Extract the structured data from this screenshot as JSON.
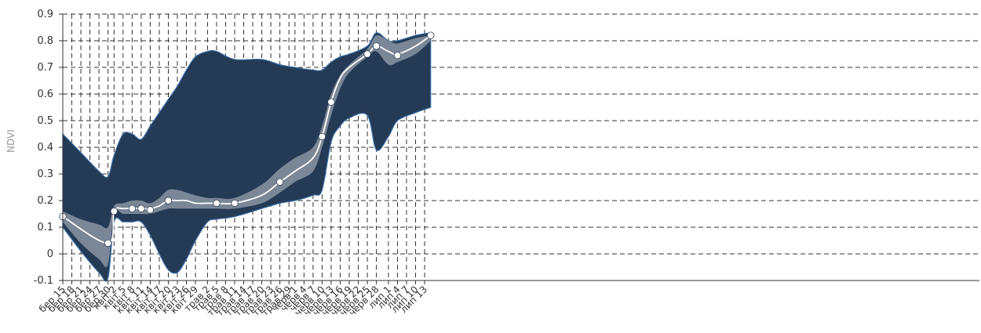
{
  "chart_data": {
    "type": "area",
    "ylabel": "NDVI",
    "ylim": [
      -0.1,
      0.9
    ],
    "yticks": [
      "-0.1",
      "0",
      "0.1",
      "0.2",
      "0.3",
      "0.4",
      "0.5",
      "0.6",
      "0.7",
      "0.8",
      "0.9"
    ],
    "grid": true,
    "x_start_date": "2015-09-15",
    "x_end_date": "2016-07-15",
    "xticks": [
      {
        "label": "бер 15",
        "date": "2015-09-15"
      },
      {
        "label": "бер 18",
        "date": "2015-09-18"
      },
      {
        "label": "бер 21",
        "date": "2015-09-21"
      },
      {
        "label": "бер 24",
        "date": "2015-09-24"
      },
      {
        "label": "бер 27",
        "date": "2015-09-27"
      },
      {
        "label": "бер 30",
        "date": "2015-09-30"
      },
      {
        "label": "квіт 2",
        "date": "2015-10-02"
      },
      {
        "label": "квіт 5",
        "date": "2015-10-05"
      },
      {
        "label": "квіт 8",
        "date": "2015-10-08"
      },
      {
        "label": "квіт 11",
        "date": "2015-10-11"
      },
      {
        "label": "квіт 14",
        "date": "2015-10-14"
      },
      {
        "label": "квіт 17",
        "date": "2015-10-17"
      },
      {
        "label": "квіт 20",
        "date": "2015-10-20"
      },
      {
        "label": "квіт 23",
        "date": "2015-10-23"
      },
      {
        "label": "квіт 26",
        "date": "2015-10-26"
      },
      {
        "label": "квіт 29",
        "date": "2015-10-29"
      },
      {
        "label": "трав 2",
        "date": "2015-11-02"
      },
      {
        "label": "трав 5",
        "date": "2015-11-05"
      },
      {
        "label": "трав 8",
        "date": "2015-11-08"
      },
      {
        "label": "трав 11",
        "date": "2015-11-11"
      },
      {
        "label": "трав 14",
        "date": "2015-11-14"
      },
      {
        "label": "трав 17",
        "date": "2015-11-17"
      },
      {
        "label": "трав 20",
        "date": "2015-11-20"
      },
      {
        "label": "трав 23",
        "date": "2015-11-23"
      },
      {
        "label": "трав 26",
        "date": "2015-11-26"
      },
      {
        "label": "трав 29",
        "date": "2015-11-29"
      },
      {
        "label": "черв 1",
        "date": "2015-12-01"
      },
      {
        "label": "черв 4",
        "date": "2015-12-04"
      },
      {
        "label": "черв 7",
        "date": "2015-12-07"
      },
      {
        "label": "черв 10",
        "date": "2015-12-10"
      },
      {
        "label": "черв 13",
        "date": "2015-12-13"
      },
      {
        "label": "черв 16",
        "date": "2015-12-16"
      },
      {
        "label": "черв 19",
        "date": "2015-12-19"
      },
      {
        "label": "черв 22",
        "date": "2015-12-22"
      },
      {
        "label": "черв 25",
        "date": "2015-12-25"
      },
      {
        "label": "черв 28",
        "date": "2015-12-28"
      },
      {
        "label": "лип 1",
        "date": "2016-01-01"
      },
      {
        "label": "лип 4",
        "date": "2016-01-04"
      },
      {
        "label": "лип 7",
        "date": "2016-01-07"
      },
      {
        "label": "лип 10",
        "date": "2016-01-10"
      },
      {
        "label": "лип 13",
        "date": "2016-01-13"
      }
    ],
    "series": [
      {
        "name": "outer-range",
        "color": "#253a54",
        "x": [
          "2015-09-15",
          "2015-09-21",
          "2015-09-27",
          "2015-09-30",
          "2015-10-02",
          "2015-10-05",
          "2015-10-08",
          "2015-10-11",
          "2015-10-14",
          "2015-10-17",
          "2015-10-20",
          "2015-10-23",
          "2015-10-26",
          "2015-10-29",
          "2015-11-02",
          "2015-11-05",
          "2015-11-11",
          "2015-11-20",
          "2015-11-26",
          "2015-12-01",
          "2015-12-07",
          "2015-12-10",
          "2015-12-13",
          "2015-12-16",
          "2015-12-19",
          "2015-12-25",
          "2015-12-28",
          "2016-01-01",
          "2016-01-04",
          "2016-01-10",
          "2016-01-15"
        ],
        "upper": [
          0.45,
          0.38,
          0.31,
          0.29,
          0.37,
          0.45,
          0.45,
          0.43,
          0.48,
          0.53,
          0.58,
          0.63,
          0.69,
          0.74,
          0.76,
          0.76,
          0.73,
          0.73,
          0.71,
          0.7,
          0.69,
          0.69,
          0.72,
          0.74,
          0.75,
          0.78,
          0.83,
          0.8,
          0.8,
          0.82,
          0.83
        ],
        "lower": [
          0.1,
          0.01,
          -0.07,
          -0.09,
          0.12,
          0.12,
          0.12,
          0.12,
          0.07,
          0.0,
          -0.06,
          -0.07,
          -0.02,
          0.05,
          0.12,
          0.13,
          0.14,
          0.17,
          0.19,
          0.2,
          0.22,
          0.24,
          0.42,
          0.48,
          0.51,
          0.52,
          0.39,
          0.44,
          0.5,
          0.53,
          0.55
        ]
      },
      {
        "name": "inner-range",
        "color": "#7a8797",
        "x": [
          "2015-09-15",
          "2015-09-21",
          "2015-09-27",
          "2015-09-30",
          "2015-10-02",
          "2015-10-05",
          "2015-10-08",
          "2015-10-11",
          "2015-10-14",
          "2015-10-17",
          "2015-10-20",
          "2015-10-23",
          "2015-10-26",
          "2015-10-29",
          "2015-11-02",
          "2015-11-05",
          "2015-11-11",
          "2015-11-20",
          "2015-11-26",
          "2015-12-01",
          "2015-12-07",
          "2015-12-10",
          "2015-12-13",
          "2015-12-16",
          "2015-12-19",
          "2015-12-25",
          "2015-12-28",
          "2016-01-01",
          "2016-01-04",
          "2016-01-10",
          "2016-01-15"
        ],
        "upper": [
          0.16,
          0.13,
          0.11,
          0.1,
          0.18,
          0.19,
          0.2,
          0.2,
          0.19,
          0.21,
          0.24,
          0.24,
          0.23,
          0.22,
          0.21,
          0.21,
          0.21,
          0.26,
          0.32,
          0.36,
          0.4,
          0.48,
          0.6,
          0.67,
          0.71,
          0.77,
          0.82,
          0.8,
          0.79,
          0.81,
          0.82
        ],
        "lower": [
          0.12,
          0.04,
          -0.02,
          -0.04,
          0.15,
          0.15,
          0.15,
          0.15,
          0.15,
          0.16,
          0.17,
          0.17,
          0.17,
          0.17,
          0.17,
          0.17,
          0.17,
          0.19,
          0.23,
          0.27,
          0.31,
          0.4,
          0.52,
          0.62,
          0.68,
          0.74,
          0.76,
          0.71,
          0.72,
          0.75,
          0.8
        ]
      },
      {
        "name": "median",
        "color": "#ffffff",
        "x": [
          "2015-09-15",
          "2015-09-30",
          "2015-10-02",
          "2015-10-05",
          "2015-10-08",
          "2015-10-11",
          "2015-10-14",
          "2015-10-17",
          "2015-10-20",
          "2015-10-23",
          "2015-10-26",
          "2015-10-29",
          "2015-11-02",
          "2015-11-05",
          "2015-11-11",
          "2015-11-20",
          "2015-11-26",
          "2015-12-01",
          "2015-12-07",
          "2015-12-10",
          "2015-12-13",
          "2015-12-16",
          "2015-12-19",
          "2015-12-25",
          "2015-12-28",
          "2016-01-01",
          "2016-01-04",
          "2016-01-10",
          "2016-01-15"
        ],
        "values": [
          0.14,
          0.04,
          0.16,
          0.17,
          0.17,
          0.17,
          0.17,
          0.18,
          0.2,
          0.2,
          0.2,
          0.19,
          0.19,
          0.19,
          0.19,
          0.22,
          0.27,
          0.31,
          0.36,
          0.44,
          0.57,
          0.66,
          0.7,
          0.75,
          0.78,
          0.76,
          0.75,
          0.78,
          0.82
        ]
      }
    ],
    "markers": {
      "color": "#ffffff",
      "x": [
        "2015-09-15",
        "2015-09-30",
        "2015-10-02",
        "2015-10-08",
        "2015-10-11",
        "2015-10-14",
        "2015-10-20",
        "2015-11-05",
        "2015-11-11",
        "2015-11-26",
        "2015-12-10",
        "2015-12-13",
        "2015-12-25",
        "2015-12-28",
        "2016-01-04",
        "2016-01-15"
      ],
      "y": [
        0.14,
        0.04,
        0.16,
        0.17,
        0.17,
        0.165,
        0.2,
        0.19,
        0.19,
        0.27,
        0.44,
        0.57,
        0.75,
        0.78,
        0.745,
        0.82
      ]
    }
  }
}
